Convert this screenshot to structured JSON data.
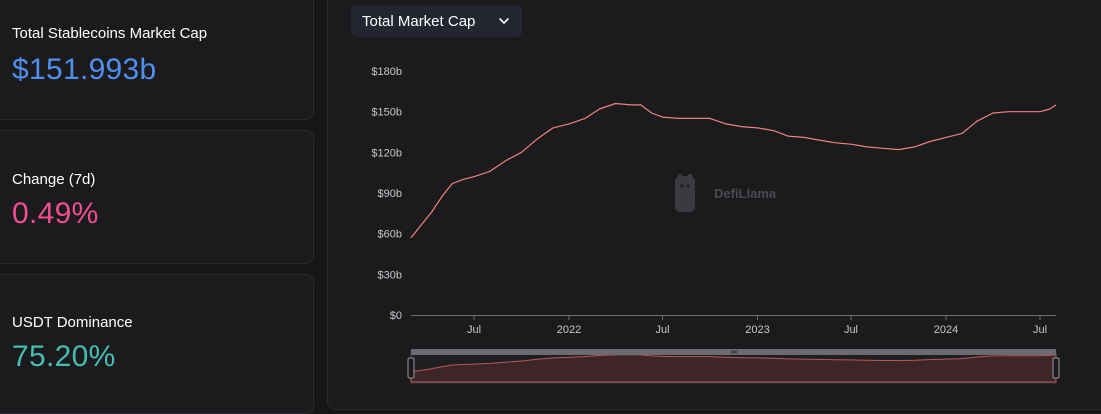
{
  "stats": [
    {
      "label": "Total Stablecoins Market Cap",
      "value": "$151.993b",
      "color": "#4f8ff0"
    },
    {
      "label": "Change (7d)",
      "value": "0.49%",
      "color": "#f04d8f"
    },
    {
      "label": "USDT Dominance",
      "value": "75.20%",
      "color": "#46bdb0"
    }
  ],
  "selector": {
    "label": "Total Market Cap",
    "icon": "chevron-down-icon"
  },
  "watermark": {
    "text": "DefiLlama",
    "icon": "llama-logo-icon"
  },
  "chart_data": {
    "type": "line",
    "title": "",
    "xlabel": "",
    "ylabel": "",
    "series": [
      {
        "color": "#f08080",
        "points": [
          [
            "2021-03-01",
            57
          ],
          [
            "2021-03-20",
            66
          ],
          [
            "2021-04-10",
            76
          ],
          [
            "2021-05-01",
            88
          ],
          [
            "2021-05-20",
            97
          ],
          [
            "2021-06-10",
            100
          ],
          [
            "2021-07-01",
            102
          ],
          [
            "2021-08-01",
            106
          ],
          [
            "2021-09-01",
            114
          ],
          [
            "2021-10-01",
            120
          ],
          [
            "2021-11-01",
            130
          ],
          [
            "2021-12-01",
            138
          ],
          [
            "2022-01-01",
            141
          ],
          [
            "2022-02-01",
            145
          ],
          [
            "2022-03-01",
            152
          ],
          [
            "2022-04-01",
            156
          ],
          [
            "2022-05-01",
            155
          ],
          [
            "2022-05-20",
            155
          ],
          [
            "2022-06-10",
            149
          ],
          [
            "2022-07-01",
            146
          ],
          [
            "2022-08-01",
            145
          ],
          [
            "2022-09-01",
            145
          ],
          [
            "2022-10-01",
            145
          ],
          [
            "2022-11-01",
            141
          ],
          [
            "2022-12-01",
            139
          ],
          [
            "2023-01-01",
            138
          ],
          [
            "2023-02-01",
            136
          ],
          [
            "2023-03-01",
            132
          ],
          [
            "2023-04-01",
            131
          ],
          [
            "2023-05-01",
            129
          ],
          [
            "2023-06-01",
            127
          ],
          [
            "2023-07-01",
            126
          ],
          [
            "2023-08-01",
            124
          ],
          [
            "2023-09-01",
            123
          ],
          [
            "2023-10-01",
            122
          ],
          [
            "2023-11-01",
            124
          ],
          [
            "2023-12-01",
            128
          ],
          [
            "2024-01-01",
            131
          ],
          [
            "2024-02-01",
            134
          ],
          [
            "2024-03-01",
            143
          ],
          [
            "2024-04-01",
            149
          ],
          [
            "2024-05-01",
            150
          ],
          [
            "2024-06-01",
            150
          ],
          [
            "2024-07-01",
            150
          ],
          [
            "2024-07-20",
            152
          ],
          [
            "2024-08-01",
            155
          ]
        ]
      }
    ],
    "x_axis": {
      "type": "time",
      "range": [
        "2021-03-01",
        "2024-08-01"
      ],
      "ticks": [
        {
          "date": "2021-07-01",
          "label": "Jul"
        },
        {
          "date": "2022-01-01",
          "label": "2022"
        },
        {
          "date": "2022-07-01",
          "label": "Jul"
        },
        {
          "date": "2023-01-01",
          "label": "2023"
        },
        {
          "date": "2023-07-01",
          "label": "Jul"
        },
        {
          "date": "2024-01-01",
          "label": "2024"
        },
        {
          "date": "2024-07-01",
          "label": "Jul"
        }
      ]
    },
    "y_axis": {
      "ylim": [
        0,
        180
      ],
      "ticks": [
        {
          "value": 0,
          "label": "$0"
        },
        {
          "value": 30,
          "label": "$30b"
        },
        {
          "value": 60,
          "label": "$60b"
        },
        {
          "value": 90,
          "label": "$90b"
        },
        {
          "value": 120,
          "label": "$120b"
        },
        {
          "value": 150,
          "label": "$150b"
        },
        {
          "value": 180,
          "label": "$180b"
        }
      ]
    },
    "grid": false,
    "legend": "none",
    "zoom_slider": true
  }
}
